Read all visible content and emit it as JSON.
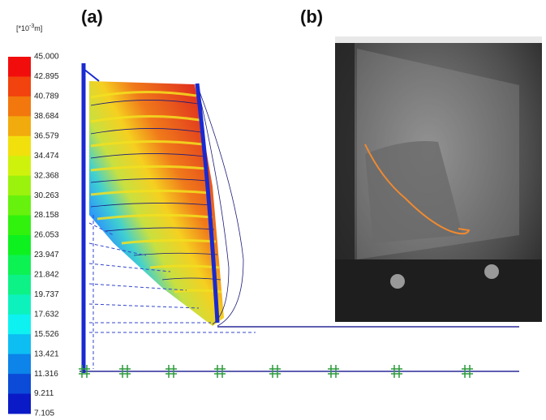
{
  "figure": {
    "unit": {
      "prefix": "[*10",
      "exponent": "-3",
      "suffix": "m]"
    },
    "colorbar_labels": [
      "45.000",
      "42.895",
      "40.789",
      "38.684",
      "36.579",
      "34.474",
      "32.368",
      "30.263",
      "28.158",
      "26.053",
      "23.947",
      "21.842",
      "19.737",
      "17.632",
      "15.526",
      "13.421",
      "11.316",
      "9.211",
      "7.105"
    ],
    "panels": [
      {
        "label": "(a)"
      },
      {
        "label": "(b)"
      }
    ]
  }
}
